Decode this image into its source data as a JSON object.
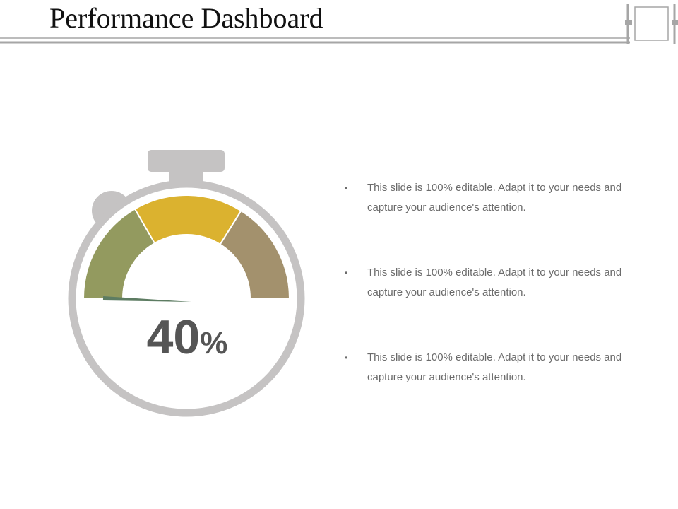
{
  "slide": {
    "title": "Performance Dashboard"
  },
  "gauge": {
    "value_number": "40",
    "value_unit": "%",
    "level_fraction": 0.4,
    "segments": [
      {
        "name": "low",
        "color": "#939a5f"
      },
      {
        "name": "mid",
        "color": "#dbb22f"
      },
      {
        "name": "high",
        "color": "#a3916d"
      }
    ],
    "ring_color": "#c5c3c3",
    "needle_color": "#5d7c62"
  },
  "bullets": [
    {
      "marker": "•",
      "text": "This slide is 100% editable. Adapt it to your needs and capture your audience's attention."
    },
    {
      "marker": "•",
      "text": "This slide is 100% editable. Adapt it to your needs and capture your audience's attention."
    },
    {
      "marker": "•",
      "text": "This slide is 100% editable. Adapt it to your needs and capture your audience's attention."
    }
  ]
}
